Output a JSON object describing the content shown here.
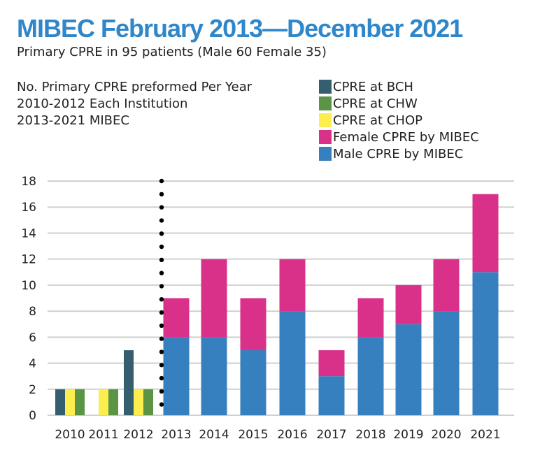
{
  "chart_data": {
    "type": "bar",
    "title": "MIBEC February 2013—December 2021",
    "subtitle": "Primary CPRE in 95 patients (Male 60 Female 35)",
    "note": [
      "No. Primary CPRE preformed Per Year",
      "2010-2012 Each Institution",
      "2013-2021 MIBEC"
    ],
    "categories": [
      "2010",
      "2011",
      "2012",
      "2013",
      "2014",
      "2015",
      "2016",
      "2017",
      "2018",
      "2019",
      "2020",
      "2021"
    ],
    "series": [
      {
        "name": "CPRE at BCH",
        "color": "#355f6e",
        "values": [
          2,
          0,
          5,
          null,
          null,
          null,
          null,
          null,
          null,
          null,
          null,
          null
        ]
      },
      {
        "name": "CPRE at CHW",
        "color": "#5a9444",
        "values": [
          2,
          2,
          2,
          null,
          null,
          null,
          null,
          null,
          null,
          null,
          null,
          null
        ]
      },
      {
        "name": "CPRE at CHOP",
        "color": "#fcee4f",
        "values": [
          2,
          2,
          2,
          null,
          null,
          null,
          null,
          null,
          null,
          null,
          null,
          null
        ]
      },
      {
        "name": "Female CPRE by MIBEC",
        "color": "#d9318a",
        "values": [
          null,
          null,
          null,
          3,
          6,
          4,
          4,
          2,
          3,
          3,
          4,
          6
        ]
      },
      {
        "name": "Male CPRE by MIBEC",
        "color": "#3780bf",
        "values": [
          null,
          null,
          null,
          6,
          6,
          5,
          8,
          3,
          6,
          7,
          8,
          11
        ]
      }
    ],
    "yticks": [
      0,
      2,
      4,
      6,
      8,
      10,
      12,
      14,
      16,
      18
    ],
    "ylim": [
      0,
      18
    ],
    "grid": true,
    "legend": "top-right"
  }
}
